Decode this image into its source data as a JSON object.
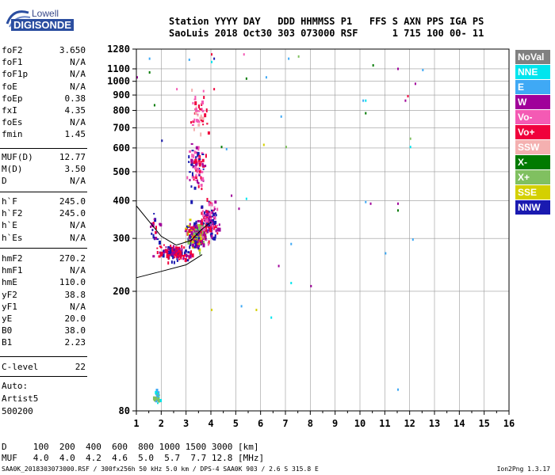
{
  "logo": {
    "line1": "Lowell",
    "line2": "DIGISONDE"
  },
  "header": {
    "columns": "Station YYYY DAY   DDD HHMMSS P1   FFS S AXN PPS IGA PS",
    "values": "SaoLuis 2018 Oct30 303 073000 RSF      1 715 100 00- 11"
  },
  "params": {
    "group1": [
      {
        "name": "foF2",
        "value": "3.650"
      },
      {
        "name": "foF1",
        "value": "N/A"
      },
      {
        "name": "foF1p",
        "value": "N/A"
      },
      {
        "name": "foE",
        "value": "N/A"
      },
      {
        "name": "foEp",
        "value": "0.38"
      },
      {
        "name": "fxI",
        "value": "4.35"
      },
      {
        "name": "foEs",
        "value": "N/A"
      },
      {
        "name": "fmin",
        "value": "1.45"
      }
    ],
    "group2": [
      {
        "name": "MUF(D)",
        "value": "12.77"
      },
      {
        "name": "M(D)",
        "value": "3.50"
      },
      {
        "name": "D",
        "value": "N/A"
      }
    ],
    "group3": [
      {
        "name": "h`F",
        "value": "245.0"
      },
      {
        "name": "h`F2",
        "value": "245.0"
      },
      {
        "name": "h`E",
        "value": "N/A"
      },
      {
        "name": "h`Es",
        "value": "N/A"
      }
    ],
    "group4": [
      {
        "name": "hmF2",
        "value": "270.2"
      },
      {
        "name": "hmF1",
        "value": "N/A"
      },
      {
        "name": "hmE",
        "value": "110.0"
      },
      {
        "name": "yF2",
        "value": "38.8"
      },
      {
        "name": "yF1",
        "value": "N/A"
      },
      {
        "name": "yE",
        "value": "20.0"
      },
      {
        "name": "B0",
        "value": "38.0"
      },
      {
        "name": "B1",
        "value": "2.23"
      }
    ],
    "clevel": {
      "name": "C-level",
      "value": "22"
    },
    "auto": [
      "Auto:",
      "Artist5",
      "500200"
    ]
  },
  "muf_table": {
    "d_line": "D     100  200  400  600  800 1000 1500 3000 [km]",
    "muf_line": "MUF   4.0  4.0  4.2  4.6  5.0  5.7  7.7 12.8 [MHz]"
  },
  "footer": "SAA0K_2018303073000.RSF / 300fx256h 50 kHz 5.0 km / DPS-4 SAA0K 903 / 2.6 S 315.8 E",
  "version": "Ion2Png 1.3.17",
  "legend": [
    {
      "label": "NoVal",
      "bg": "#808080",
      "fg": "#ffffff"
    },
    {
      "label": "NNE",
      "bg": "#00e5ee",
      "fg": "#ffffff"
    },
    {
      "label": "E",
      "bg": "#3fa9f5",
      "fg": "#ffffff"
    },
    {
      "label": "W",
      "bg": "#a0009a",
      "fg": "#ffffff"
    },
    {
      "label": "Vo-",
      "bg": "#f45ab4",
      "fg": "#ffffff"
    },
    {
      "label": "Vo+",
      "bg": "#f0003c",
      "fg": "#ffffff"
    },
    {
      "label": "SSW",
      "bg": "#f4b0b0",
      "fg": "#ffffff"
    },
    {
      "label": "X-",
      "bg": "#007a00",
      "fg": "#ffffff"
    },
    {
      "label": "X+",
      "bg": "#80c060",
      "fg": "#ffffff"
    },
    {
      "label": "SSE",
      "bg": "#d4d000",
      "fg": "#ffffff"
    },
    {
      "label": "NNW",
      "bg": "#1a1ab0",
      "fg": "#ffffff"
    }
  ],
  "chart_data": {
    "type": "scatter",
    "x_ticks": [
      "1",
      "2",
      "3",
      "4",
      "5",
      "6",
      "7",
      "8",
      "9",
      "10",
      "11",
      "12",
      "13",
      "14",
      "15",
      "16"
    ],
    "y_ticks": [
      "80",
      "200",
      "300",
      "400",
      "500",
      "600",
      "700",
      "800",
      "900",
      "1000",
      "1100",
      "1280"
    ],
    "xlim": [
      1,
      16
    ],
    "ylim": [
      80,
      1280
    ],
    "y_scale": "log",
    "grid": true,
    "legend_position": "right",
    "profile_line": [
      [
        1.0,
        222
      ],
      [
        2.0,
        233
      ],
      [
        3.0,
        245
      ],
      [
        3.65,
        265
      ]
    ],
    "trace_line": [
      [
        1.0,
        385
      ],
      [
        2.0,
        305
      ],
      [
        2.6,
        285
      ],
      [
        3.2,
        295
      ],
      [
        3.6,
        320
      ],
      [
        4.0,
        340
      ]
    ],
    "clusters": [
      {
        "cx": 2.5,
        "cy": 270,
        "rx": 0.9,
        "ry": 22,
        "colors": [
          "#f0003c",
          "#f0003c",
          "#a0009a",
          "#1a1ab0"
        ],
        "n": 130
      },
      {
        "cx": 3.4,
        "cy": 310,
        "rx": 0.55,
        "ry": 45,
        "colors": [
          "#f0003c",
          "#80c060",
          "#d4d000",
          "#a0009a",
          "#1a1ab0"
        ],
        "n": 220
      },
      {
        "cx": 3.9,
        "cy": 350,
        "rx": 0.5,
        "ry": 70,
        "colors": [
          "#a0009a",
          "#f0003c",
          "#1a1ab0",
          "#f45ab4"
        ],
        "n": 150
      },
      {
        "cx": 3.4,
        "cy": 520,
        "rx": 0.45,
        "ry": 140,
        "colors": [
          "#f0003c",
          "#a0009a",
          "#f45ab4",
          "#1a1ab0"
        ],
        "n": 90
      },
      {
        "cx": 3.5,
        "cy": 800,
        "rx": 0.5,
        "ry": 180,
        "colors": [
          "#f0003c",
          "#f45ab4",
          "#f4b0b0"
        ],
        "n": 50
      },
      {
        "cx": 1.8,
        "cy": 90,
        "rx": 0.2,
        "ry": 6,
        "colors": [
          "#00e5ee",
          "#80c060",
          "#3fa9f5"
        ],
        "n": 25
      },
      {
        "cx": 1.7,
        "cy": 320,
        "rx": 0.3,
        "ry": 60,
        "colors": [
          "#a0009a",
          "#f0003c",
          "#1a1ab0"
        ],
        "n": 25
      }
    ],
    "scatter_points": [
      [
        4.0,
        1240,
        "#f0003c"
      ],
      [
        4.1,
        1200,
        "#1a1ab0"
      ],
      [
        4.0,
        1170,
        "#00e5ee"
      ],
      [
        5.3,
        1240,
        "#f45ab4"
      ],
      [
        5.4,
        1030,
        "#007a00"
      ],
      [
        6.2,
        1040,
        "#3fa9f5"
      ],
      [
        7.1,
        1200,
        "#3fa9f5"
      ],
      [
        7.5,
        1220,
        "#80c060"
      ],
      [
        10.5,
        1140,
        "#007a00"
      ],
      [
        11.5,
        1110,
        "#a0009a"
      ],
      [
        12.5,
        1100,
        "#3fa9f5"
      ],
      [
        12.2,
        990,
        "#a0009a"
      ],
      [
        11.9,
        900,
        "#f0003c"
      ],
      [
        10.2,
        790,
        "#007a00"
      ],
      [
        11.8,
        870,
        "#a0009a"
      ],
      [
        12.0,
        650,
        "#80c060"
      ],
      [
        12.0,
        610,
        "#00e5ee"
      ],
      [
        7.0,
        610,
        "#80c060"
      ],
      [
        6.1,
        620,
        "#d4d000"
      ],
      [
        4.4,
        610,
        "#007a00"
      ],
      [
        5.4,
        410,
        "#00e5ee"
      ],
      [
        7.2,
        290,
        "#3fa9f5"
      ],
      [
        7.2,
        215,
        "#00e5ee"
      ],
      [
        8.0,
        210,
        "#a0009a"
      ],
      [
        6.7,
        245,
        "#a0009a"
      ],
      [
        10.2,
        400,
        "#3fa9f5"
      ],
      [
        10.4,
        395,
        "#a0009a"
      ],
      [
        11.5,
        395,
        "#a0009a"
      ],
      [
        11.5,
        375,
        "#007a00"
      ],
      [
        12.1,
        300,
        "#3fa9f5"
      ],
      [
        11.5,
        95,
        "#3fa9f5"
      ],
      [
        4.0,
        175,
        "#d4d000"
      ],
      [
        5.2,
        180,
        "#3fa9f5"
      ],
      [
        5.8,
        175,
        "#d4d000"
      ],
      [
        6.4,
        165,
        "#00e5ee"
      ],
      [
        1.0,
        1040,
        "#a0009a"
      ],
      [
        1.5,
        1200,
        "#3fa9f5"
      ],
      [
        1.5,
        1080,
        "#007a00"
      ],
      [
        1.7,
        840,
        "#007a00"
      ],
      [
        2.0,
        640,
        "#1a1ab0"
      ],
      [
        2.6,
        950,
        "#f45ab4"
      ],
      [
        4.1,
        950,
        "#f0003c"
      ],
      [
        4.6,
        600,
        "#3fa9f5"
      ],
      [
        4.8,
        420,
        "#a0009a"
      ],
      [
        5.1,
        380,
        "#a0009a"
      ],
      [
        6.8,
        770,
        "#3fa9f5"
      ],
      [
        10.1,
        870,
        "#3fa9f5"
      ],
      [
        10.2,
        870,
        "#00e5ee"
      ],
      [
        11.0,
        270,
        "#3fa9f5"
      ],
      [
        3.1,
        1190,
        "#3fa9f5"
      ]
    ]
  }
}
